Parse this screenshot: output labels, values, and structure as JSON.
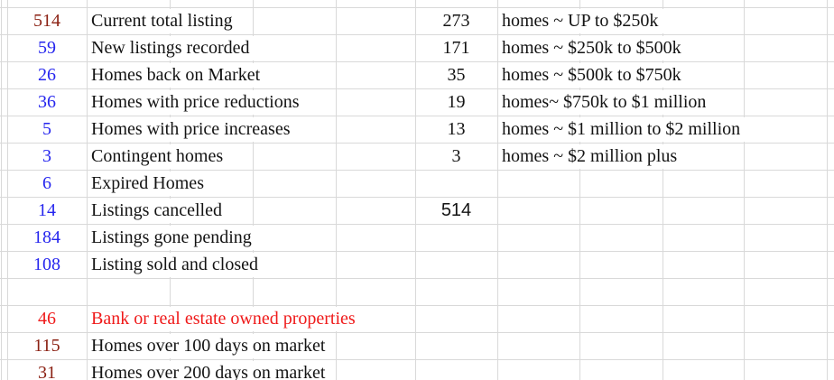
{
  "colors": {
    "background": "#ffffff",
    "gridline": "#d9d9d9",
    "maroon": "#8b2113",
    "blue": "#2525ee",
    "red": "#ef1a1a",
    "black": "#131313"
  },
  "left_table": {
    "rows": [
      {
        "value": "514",
        "value_color": "maroon",
        "label": "Current total listing",
        "label_color": "black"
      },
      {
        "value": "59",
        "value_color": "blue",
        "label": "New listings recorded",
        "label_color": "black"
      },
      {
        "value": "26",
        "value_color": "blue",
        "label": "Homes back on Market",
        "label_color": "black"
      },
      {
        "value": "36",
        "value_color": "blue",
        "label": "Homes with price reductions",
        "label_color": "black"
      },
      {
        "value": "5",
        "value_color": "blue",
        "label": "Homes with price increases",
        "label_color": "black"
      },
      {
        "value": "3",
        "value_color": "blue",
        "label": "Contingent homes",
        "label_color": "black"
      },
      {
        "value": "6",
        "value_color": "blue",
        "label": "Expired Homes",
        "label_color": "black"
      },
      {
        "value": "14",
        "value_color": "blue",
        "label": "Listings cancelled",
        "label_color": "black"
      },
      {
        "value": "184",
        "value_color": "blue",
        "label": "Listings gone pending",
        "label_color": "black"
      },
      {
        "value": "108",
        "value_color": "blue",
        "label": "Listing sold and closed",
        "label_color": "black"
      },
      {
        "value": "",
        "value_color": "black",
        "label": "",
        "label_color": "black"
      },
      {
        "value": "46",
        "value_color": "red",
        "label": "Bank or real estate owned properties",
        "label_color": "red"
      },
      {
        "value": "115",
        "value_color": "maroon",
        "label": "Homes over 100 days on market",
        "label_color": "black"
      },
      {
        "value": "31",
        "value_color": "maroon",
        "label": "Homes over 200 days on market",
        "label_color": "black"
      }
    ]
  },
  "right_table": {
    "rows": [
      {
        "value": "273",
        "value_color": "black",
        "label": "homes ~ UP to $250k",
        "label_color": "black"
      },
      {
        "value": "171",
        "value_color": "black",
        "label": "homes ~ $250k to $500k",
        "label_color": "black"
      },
      {
        "value": "35",
        "value_color": "black",
        "label": "homes ~ $500k to $750k",
        "label_color": "black"
      },
      {
        "value": "19",
        "value_color": "black",
        "label": "homes~ $750k to $1 million",
        "label_color": "black"
      },
      {
        "value": "13",
        "value_color": "black",
        "label": "homes ~ $1 million to $2 million",
        "label_color": "black"
      },
      {
        "value": "3",
        "value_color": "black",
        "label": "homes ~ $2 million plus",
        "label_color": "black"
      },
      {
        "value": "",
        "value_color": "black",
        "label": "",
        "label_color": "black"
      },
      {
        "value": "514",
        "value_color": "black",
        "label": "",
        "label_color": "black",
        "font": "sans"
      }
    ]
  }
}
